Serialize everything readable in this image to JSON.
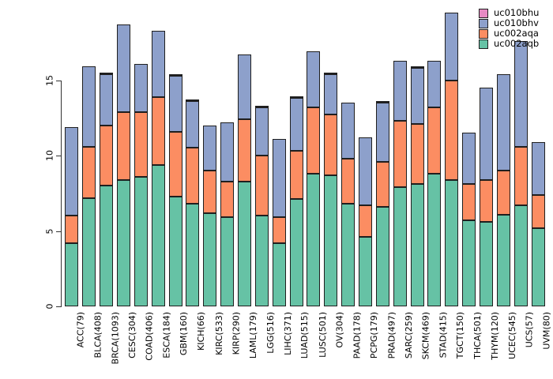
{
  "chart_data": {
    "type": "bar",
    "stacked": true,
    "title": "",
    "xlabel": "",
    "ylabel": "",
    "grid": false,
    "yticks": [
      0,
      5,
      10,
      15
    ],
    "ylim": [
      0,
      19.6
    ],
    "legend_position": "top-right",
    "legend_order": [
      "uc010bhu",
      "uc010bhv",
      "uc002aqa",
      "uc002aqb"
    ],
    "categories": [
      "ACC(79)",
      "BLCA(408)",
      "BRCA(1093)",
      "CESC(304)",
      "COAD(406)",
      "ESCA(184)",
      "GBM(160)",
      "KICH(66)",
      "KIRC(533)",
      "KIRP(290)",
      "LAML(179)",
      "LGG(516)",
      "LIHC(371)",
      "LUAD(515)",
      "LUSC(501)",
      "OV(304)",
      "PAAD(178)",
      "PCPG(179)",
      "PRAD(497)",
      "SARC(259)",
      "SKCM(469)",
      "STAD(415)",
      "TGCT(150)",
      "THCA(501)",
      "THYM(120)",
      "UCEC(545)",
      "UCS(57)",
      "UVM(80)"
    ],
    "series": [
      {
        "name": "uc002aqb",
        "color": "#66C2A5",
        "values": [
          4.2,
          7.2,
          8.0,
          8.4,
          8.6,
          9.4,
          7.3,
          6.8,
          6.2,
          5.9,
          8.3,
          6.0,
          4.2,
          7.1,
          8.8,
          8.7,
          6.8,
          4.6,
          6.6,
          7.9,
          8.1,
          8.8,
          8.4,
          5.7,
          5.6,
          6.1,
          6.7,
          5.2
        ]
      },
      {
        "name": "uc002aqa",
        "color": "#FC8D62",
        "values": [
          1.8,
          3.4,
          4.0,
          4.5,
          4.3,
          4.5,
          4.3,
          3.7,
          2.8,
          2.4,
          4.1,
          4.0,
          1.7,
          3.2,
          4.4,
          4.0,
          3.0,
          2.1,
          3.0,
          4.4,
          4.0,
          4.4,
          6.6,
          2.4,
          2.8,
          2.9,
          3.9,
          2.2
        ]
      },
      {
        "name": "uc010bhv",
        "color": "#8DA0CB",
        "values": [
          5.9,
          5.3,
          3.4,
          5.8,
          3.2,
          4.4,
          3.7,
          3.1,
          3.0,
          3.9,
          4.3,
          3.2,
          5.2,
          3.5,
          3.7,
          2.7,
          3.7,
          4.5,
          3.9,
          4.0,
          3.7,
          3.1,
          4.5,
          3.4,
          6.1,
          6.4,
          7.0,
          3.5
        ]
      },
      {
        "name": "uc010bhu",
        "color": "#E78AC3",
        "values": [
          0,
          0,
          0.1,
          0,
          0,
          0,
          0.1,
          0.1,
          0,
          0,
          0,
          0.1,
          0,
          0.1,
          0,
          0.1,
          0,
          0,
          0.1,
          0,
          0.1,
          0,
          0,
          0,
          0,
          0,
          0,
          0
        ]
      }
    ],
    "totals": [
      11.9,
      15.9,
      15.5,
      18.7,
      16.1,
      18.3,
      15.4,
      13.7,
      12.0,
      12.2,
      16.7,
      13.3,
      11.1,
      13.9,
      16.9,
      15.5,
      13.5,
      11.2,
      13.6,
      16.3,
      15.9,
      16.3,
      19.5,
      11.5,
      14.5,
      15.4,
      17.6,
      10.9
    ]
  },
  "style": {
    "bar_border": "#1f1f1f",
    "axis_color": "#333333",
    "text_color": "#000000",
    "background": "#ffffff"
  }
}
